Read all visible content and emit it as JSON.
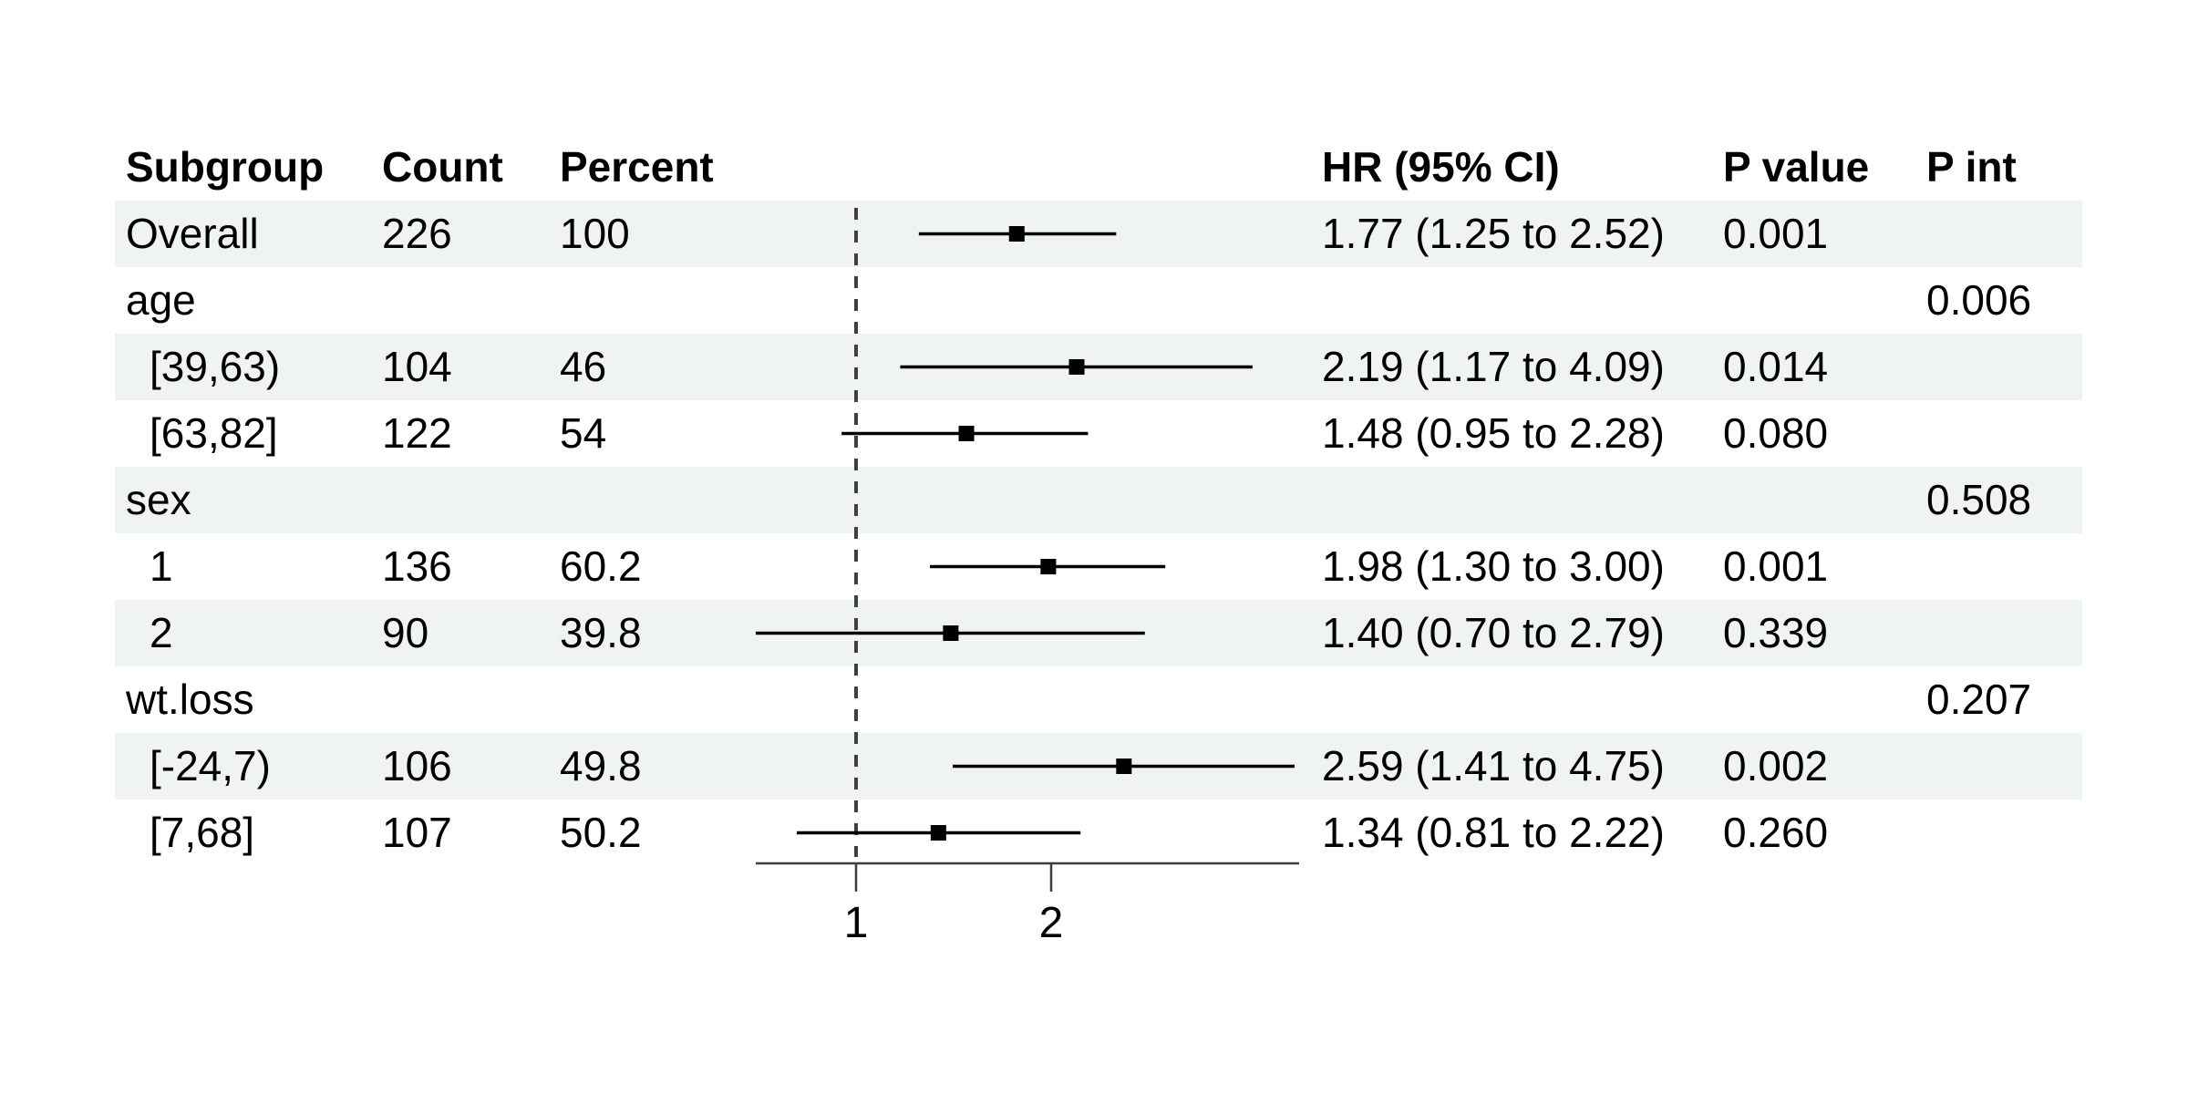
{
  "colors": {
    "stripe": "#eff3f2",
    "marker": "#000000",
    "ci_line": "#000000",
    "reference_line": "#3f3f3f",
    "axis": "#3c3c3c",
    "text": "#000000"
  },
  "table": {
    "columns": [
      {
        "key": "subgroup",
        "label": "Subgroup"
      },
      {
        "key": "count",
        "label": "Count"
      },
      {
        "key": "percent",
        "label": "Percent"
      },
      {
        "key": "hr_ci",
        "label": "HR (95% CI)"
      },
      {
        "key": "p_value",
        "label": "P value"
      },
      {
        "key": "p_int",
        "label": "P int"
      }
    ],
    "rows": [
      {
        "subgroup": "Overall",
        "level": 0,
        "count": "226",
        "percent": "100",
        "hr_ci": "1.77 (1.25 to 2.52)",
        "p_value": "0.001",
        "p_int": ""
      },
      {
        "subgroup": "age",
        "level": 0,
        "count": "",
        "percent": "",
        "hr_ci": "",
        "p_value": "",
        "p_int": "0.006"
      },
      {
        "subgroup": "[39,63)",
        "level": 1,
        "count": "104",
        "percent": "46",
        "hr_ci": "2.19 (1.17 to 4.09)",
        "p_value": "0.014",
        "p_int": ""
      },
      {
        "subgroup": "[63,82]",
        "level": 1,
        "count": "122",
        "percent": "54",
        "hr_ci": "1.48 (0.95 to 2.28)",
        "p_value": "0.080",
        "p_int": ""
      },
      {
        "subgroup": "sex",
        "level": 0,
        "count": "",
        "percent": "",
        "hr_ci": "",
        "p_value": "",
        "p_int": "0.508"
      },
      {
        "subgroup": "1",
        "level": 1,
        "count": "136",
        "percent": "60.2",
        "hr_ci": "1.98 (1.30 to 3.00)",
        "p_value": "0.001",
        "p_int": ""
      },
      {
        "subgroup": "2",
        "level": 1,
        "count": "90",
        "percent": "39.8",
        "hr_ci": "1.40 (0.70 to 2.79)",
        "p_value": "0.339",
        "p_int": ""
      },
      {
        "subgroup": "wt.loss",
        "level": 0,
        "count": "",
        "percent": "",
        "hr_ci": "",
        "p_value": "",
        "p_int": "0.207"
      },
      {
        "subgroup": "[-24,7)",
        "level": 1,
        "count": "106",
        "percent": "49.8",
        "hr_ci": "2.59 (1.41 to 4.75)",
        "p_value": "0.002",
        "p_int": ""
      },
      {
        "subgroup": "[7,68]",
        "level": 1,
        "count": "107",
        "percent": "50.2",
        "hr_ci": "1.34 (0.81 to 2.22)",
        "p_value": "0.260",
        "p_int": ""
      }
    ]
  },
  "chart_data": {
    "type": "forest",
    "x_scale": "log2",
    "xlim": [
      0.7,
      4.83
    ],
    "x_ticks": [
      "1",
      "2"
    ],
    "x_tick_values": [
      1,
      2
    ],
    "reference_line": 1,
    "grid": false,
    "points": [
      {
        "label": "Overall",
        "row": 0,
        "est": 1.77,
        "low": 1.25,
        "high": 2.52
      },
      {
        "label": "[39,63)",
        "row": 2,
        "est": 2.19,
        "low": 1.17,
        "high": 4.09
      },
      {
        "label": "[63,82]",
        "row": 3,
        "est": 1.48,
        "low": 0.95,
        "high": 2.28
      },
      {
        "label": "1",
        "row": 5,
        "est": 1.98,
        "low": 1.3,
        "high": 3.0
      },
      {
        "label": "2",
        "row": 6,
        "est": 1.4,
        "low": 0.7,
        "high": 2.79
      },
      {
        "label": "[-24,7)",
        "row": 8,
        "est": 2.59,
        "low": 1.41,
        "high": 4.75
      },
      {
        "label": "[7,68]",
        "row": 9,
        "est": 1.34,
        "low": 0.81,
        "high": 2.22
      }
    ]
  }
}
